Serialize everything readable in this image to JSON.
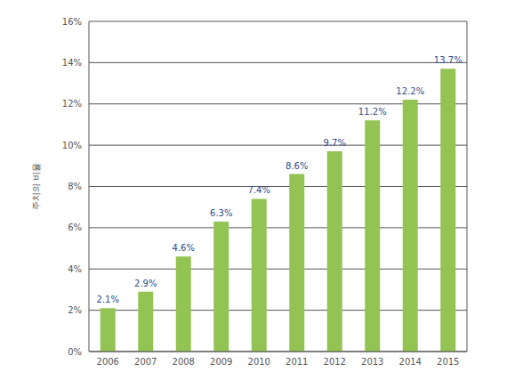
{
  "chart_data": {
    "type": "bar",
    "y_label": "주치의 비율",
    "categories": [
      "2006",
      "2007",
      "2008",
      "2009",
      "2010",
      "2011",
      "2012",
      "2013",
      "2014",
      "2015"
    ],
    "values": [
      2.1,
      2.9,
      4.6,
      6.3,
      7.4,
      8.6,
      9.7,
      11.2,
      12.2,
      13.7
    ],
    "value_labels": [
      "2.1%",
      "2.9%",
      "4.6%",
      "6.3%",
      "7.4%",
      "8.6%",
      "9.7%",
      "11.2%",
      "12.2%",
      "13.7%"
    ],
    "color": "#92c353",
    "ylim": [
      0,
      16
    ],
    "yticks": [
      {
        "value": 0,
        "label": "0%"
      },
      {
        "value": 2,
        "label": "2%"
      },
      {
        "value": 4,
        "label": "4%"
      },
      {
        "value": 6,
        "label": "6%"
      },
      {
        "value": 8,
        "label": "8%"
      },
      {
        "value": 10,
        "label": "10%"
      },
      {
        "value": 12,
        "label": "12%"
      },
      {
        "value": 14,
        "label": "14%"
      },
      {
        "value": 16,
        "label": "16%"
      }
    ],
    "grid": true,
    "data_labels": true
  }
}
